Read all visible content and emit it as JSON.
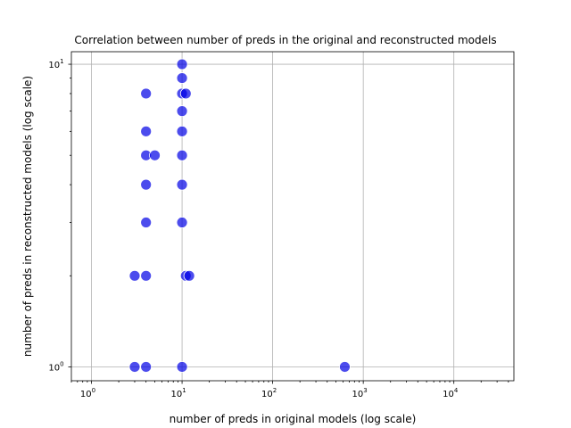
{
  "chart_data": {
    "type": "scatter",
    "title": "Correlation between number of preds in the original and reconstructed models",
    "xlabel": "number of preds in original models (log scale)",
    "ylabel": "number of preds in reconstructed models (log scale)",
    "xscale": "log",
    "yscale": "log",
    "xlim": [
      0.6,
      46000
    ],
    "ylim": [
      0.9,
      11
    ],
    "grid": true,
    "legend": "none",
    "marker_color": "#0000e6",
    "x_ticks": [
      {
        "value": 1,
        "base": "10",
        "exp": "0"
      },
      {
        "value": 10,
        "base": "10",
        "exp": "1"
      },
      {
        "value": 100,
        "base": "10",
        "exp": "2"
      },
      {
        "value": 1000,
        "base": "10",
        "exp": "3"
      },
      {
        "value": 10000,
        "base": "10",
        "exp": "4"
      }
    ],
    "y_ticks": [
      {
        "value": 1,
        "base": "10",
        "exp": "0"
      },
      {
        "value": 10,
        "base": "10",
        "exp": "1"
      }
    ],
    "points": [
      {
        "x": 3,
        "y": 1
      },
      {
        "x": 4,
        "y": 1
      },
      {
        "x": 10,
        "y": 1
      },
      {
        "x": 625,
        "y": 1
      },
      {
        "x": 3,
        "y": 2
      },
      {
        "x": 4,
        "y": 2
      },
      {
        "x": 11,
        "y": 2
      },
      {
        "x": 12,
        "y": 2
      },
      {
        "x": 4,
        "y": 3
      },
      {
        "x": 10,
        "y": 3
      },
      {
        "x": 4,
        "y": 4
      },
      {
        "x": 10,
        "y": 4
      },
      {
        "x": 4,
        "y": 5
      },
      {
        "x": 5,
        "y": 5
      },
      {
        "x": 10,
        "y": 5
      },
      {
        "x": 4,
        "y": 6
      },
      {
        "x": 10,
        "y": 6
      },
      {
        "x": 10,
        "y": 7
      },
      {
        "x": 4,
        "y": 8
      },
      {
        "x": 10,
        "y": 8
      },
      {
        "x": 11,
        "y": 8
      },
      {
        "x": 10,
        "y": 9
      },
      {
        "x": 10,
        "y": 10
      }
    ]
  }
}
